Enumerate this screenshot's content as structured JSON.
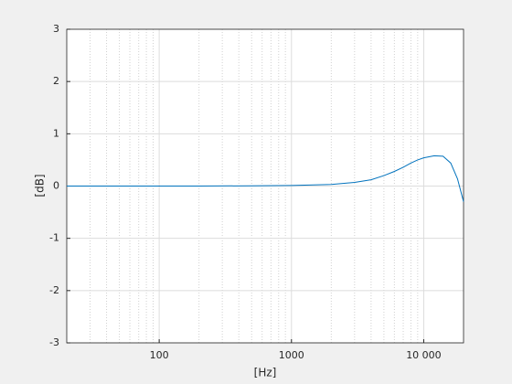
{
  "chart_data": {
    "type": "line",
    "xlabel": "[Hz]",
    "ylabel": "[dB]",
    "x": [
      20,
      50,
      100,
      200,
      500,
      1000,
      2000,
      3000,
      4000,
      5000,
      6000,
      7000,
      8000,
      9000,
      10000,
      12000,
      14000,
      16000,
      18000,
      20000
    ],
    "series": [
      {
        "color": "#0072bd",
        "values": [
          0,
          0,
          0,
          0,
          0.005,
          0.01,
          0.03,
          0.07,
          0.12,
          0.2,
          0.28,
          0.36,
          0.44,
          0.5,
          0.54,
          0.58,
          0.57,
          0.44,
          0.14,
          -0.3
        ]
      }
    ],
    "xlim": [
      20,
      20000
    ],
    "xscale": "log",
    "xticks": [
      100,
      1000,
      {
        "value": 10000,
        "label": "10 000"
      }
    ],
    "ylim": [
      -3,
      3
    ],
    "yticks": [
      -3,
      -2,
      -1,
      0,
      1,
      2,
      3
    ],
    "grid": true,
    "minor_grid": true
  }
}
